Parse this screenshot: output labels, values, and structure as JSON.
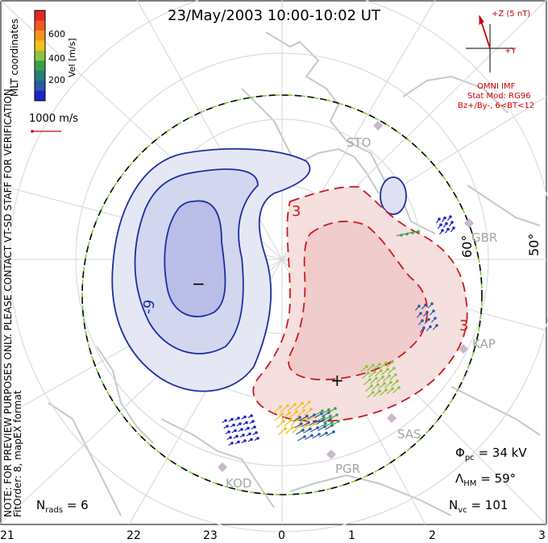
{
  "title": "23/May/2003 10:00-10:02 UT",
  "side_note": {
    "line1": "NOTE: FOR PREVIEW PURPOSES ONLY. PLEASE CONTACT VT-SD STAFF FOR VERIFICATION.",
    "line2": "FitOrder: 8,  mapEX format"
  },
  "coord_label": "MLT coordinates",
  "colorbar": {
    "label": "Vel [m/s]",
    "ticks": [
      "600",
      "400",
      "200"
    ],
    "colors": [
      "#e8262a",
      "#f25a21",
      "#f7941d",
      "#f2c21a",
      "#8cc63f",
      "#3aa14a",
      "#2b7d7a",
      "#2a5aa8",
      "#1c24c8"
    ]
  },
  "vector_scale": "1000 m/s",
  "imf": {
    "z_label": "+Z (5 nT)",
    "y_label": "+Y",
    "source": "OMNI IMF",
    "model": "Stat Mod: RG96",
    "condition": "Bz+/By-, 6<BT<12"
  },
  "contours": {
    "negative_label": "-9",
    "positive_label": "3",
    "positive_label_2": "3",
    "min_marker": "−",
    "max_marker": "+",
    "colors": {
      "negative": "#1a2fa3",
      "positive": "#cc1a1a",
      "boundary": "#000000",
      "hm": "#7fd13b"
    }
  },
  "lat_labels": [
    "60°",
    "50°"
  ],
  "stations": [
    "STO",
    "GBR",
    "KAP",
    "SAS",
    "PGR",
    "KOD"
  ],
  "mlt_ticks": [
    "21",
    "22",
    "23",
    "0",
    "1",
    "2",
    "3"
  ],
  "stats": {
    "phi_pc_label": "Φ",
    "phi_pc_sub": "pc",
    "phi_pc_value": "= 34 kV",
    "lambda_hm_label": "Λ",
    "lambda_hm_sub": "HM",
    "lambda_hm_value": "= 59°",
    "n_vc_label": "N",
    "n_vc_sub": "vc",
    "n_vc_value": "= 101",
    "n_rads_label": "N",
    "n_rads_sub": "rads",
    "n_rads_value": "= 6"
  }
}
